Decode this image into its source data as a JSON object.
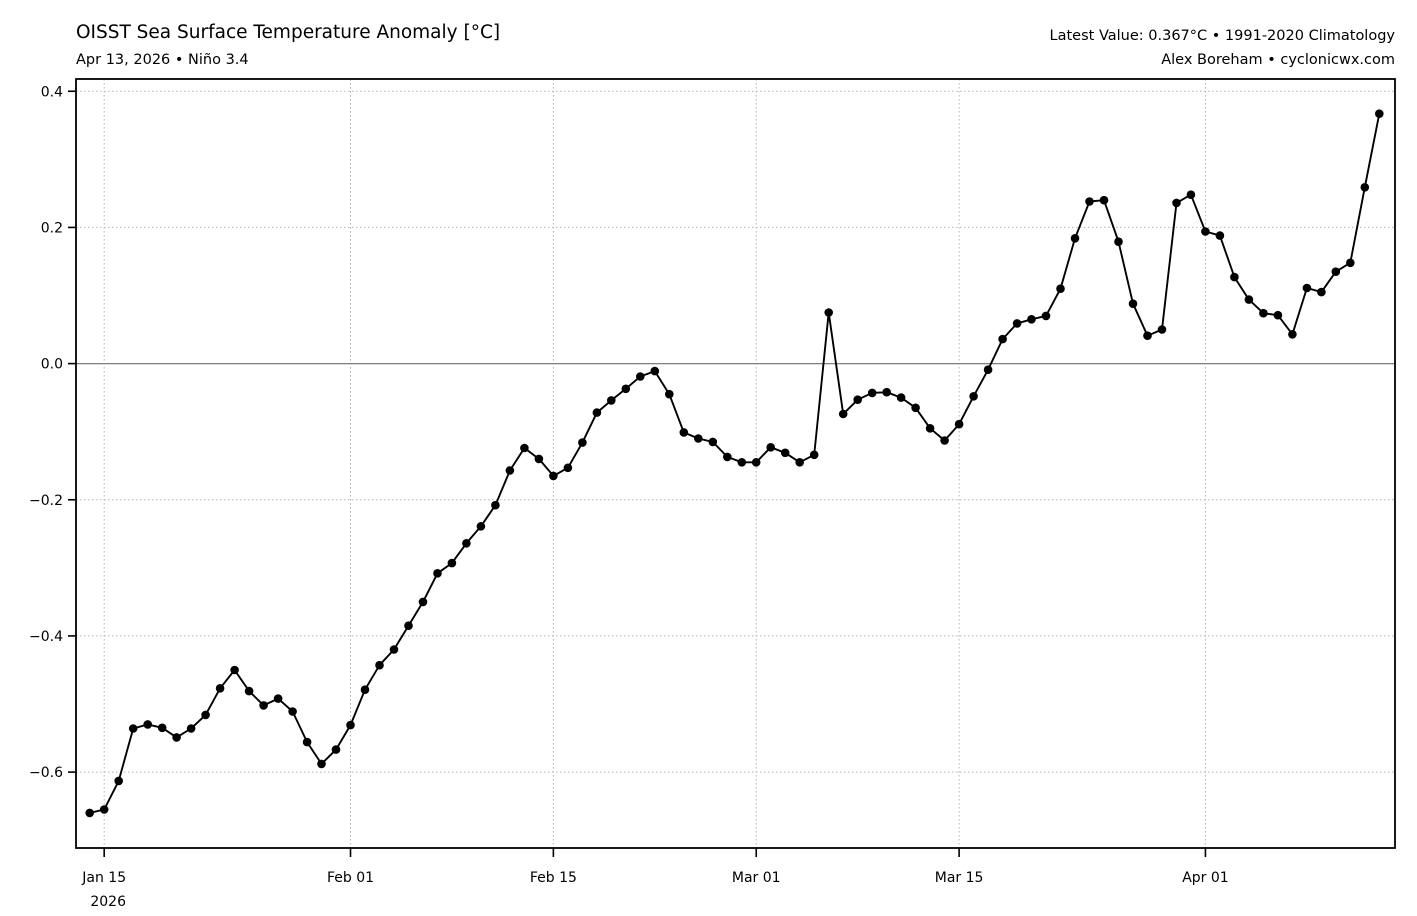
{
  "header": {
    "title": "OISST Sea Surface Temperature Anomaly [°C]",
    "subtitle": "Apr 13, 2026 • Niño 3.4",
    "right_line1": "Latest Value: 0.367°C • 1991-2020 Climatology",
    "right_line2": "Alex Boreham • cyclonicwx.com"
  },
  "colors": {
    "background": "#ffffff",
    "line": "#000000",
    "marker": "#000000",
    "grid": "#b3b3b3",
    "zero_line": "#7f7f7f",
    "spine": "#000000",
    "text": "#000000"
  },
  "chart_data": {
    "type": "line",
    "title": "OISST Sea Surface Temperature Anomaly [°C]",
    "subtitle": "Apr 13, 2026 • Niño 3.4",
    "series_name": "SST anomaly Niño 3.4 (°C)",
    "latest_value": 0.367,
    "xlabel": "",
    "ylabel": "",
    "grid": true,
    "legend": false,
    "zero_line": true,
    "marker": "circle",
    "x": [
      "2026-01-14",
      "2026-01-15",
      "2026-01-16",
      "2026-01-17",
      "2026-01-18",
      "2026-01-19",
      "2026-01-20",
      "2026-01-21",
      "2026-01-22",
      "2026-01-23",
      "2026-01-24",
      "2026-01-25",
      "2026-01-26",
      "2026-01-27",
      "2026-01-28",
      "2026-01-29",
      "2026-01-30",
      "2026-01-31",
      "2026-02-01",
      "2026-02-02",
      "2026-02-03",
      "2026-02-04",
      "2026-02-05",
      "2026-02-06",
      "2026-02-07",
      "2026-02-08",
      "2026-02-09",
      "2026-02-10",
      "2026-02-11",
      "2026-02-12",
      "2026-02-13",
      "2026-02-14",
      "2026-02-15",
      "2026-02-16",
      "2026-02-17",
      "2026-02-18",
      "2026-02-19",
      "2026-02-20",
      "2026-02-21",
      "2026-02-22",
      "2026-02-23",
      "2026-02-24",
      "2026-02-25",
      "2026-02-26",
      "2026-02-27",
      "2026-02-28",
      "2026-03-01",
      "2026-03-02",
      "2026-03-03",
      "2026-03-04",
      "2026-03-05",
      "2026-03-06",
      "2026-03-07",
      "2026-03-08",
      "2026-03-09",
      "2026-03-10",
      "2026-03-11",
      "2026-03-12",
      "2026-03-13",
      "2026-03-14",
      "2026-03-15",
      "2026-03-16",
      "2026-03-17",
      "2026-03-18",
      "2026-03-19",
      "2026-03-20",
      "2026-03-21",
      "2026-03-22",
      "2026-03-23",
      "2026-03-24",
      "2026-03-25",
      "2026-03-26",
      "2026-03-27",
      "2026-03-28",
      "2026-03-29",
      "2026-03-30",
      "2026-03-31",
      "2026-04-01",
      "2026-04-02",
      "2026-04-03",
      "2026-04-04",
      "2026-04-05",
      "2026-04-06",
      "2026-04-07",
      "2026-04-08",
      "2026-04-09",
      "2026-04-10",
      "2026-04-11",
      "2026-04-12",
      "2026-04-13"
    ],
    "values": [
      -0.66,
      -0.655,
      -0.613,
      -0.536,
      -0.53,
      -0.535,
      -0.549,
      -0.536,
      -0.516,
      -0.477,
      -0.45,
      -0.481,
      -0.502,
      -0.492,
      -0.511,
      -0.556,
      -0.588,
      -0.567,
      -0.531,
      -0.479,
      -0.443,
      -0.42,
      -0.385,
      -0.35,
      -0.308,
      -0.293,
      -0.264,
      -0.239,
      -0.208,
      -0.157,
      -0.124,
      -0.14,
      -0.165,
      -0.153,
      -0.116,
      -0.072,
      -0.054,
      -0.037,
      -0.019,
      -0.011,
      -0.045,
      -0.101,
      -0.11,
      -0.115,
      -0.137,
      -0.145,
      -0.145,
      -0.123,
      -0.131,
      -0.145,
      -0.134,
      0.075,
      -0.074,
      -0.053,
      -0.043,
      -0.042,
      -0.05,
      -0.065,
      -0.095,
      -0.113,
      -0.089,
      -0.048,
      -0.009,
      0.036,
      0.059,
      0.065,
      0.07,
      0.11,
      0.184,
      0.238,
      0.24,
      0.179,
      0.088,
      0.041,
      0.05,
      0.236,
      0.248,
      0.194,
      0.188,
      0.127,
      0.094,
      0.074,
      0.071,
      0.043,
      0.111,
      0.105,
      0.135,
      0.148,
      0.259,
      0.367
    ],
    "xticks": [
      {
        "label": "Jan 15",
        "sublabel": "2026",
        "index": 1
      },
      {
        "label": "Feb 01",
        "sublabel": "",
        "index": 18
      },
      {
        "label": "Feb 15",
        "sublabel": "",
        "index": 32
      },
      {
        "label": "Mar 01",
        "sublabel": "",
        "index": 46
      },
      {
        "label": "Mar 15",
        "sublabel": "",
        "index": 60
      },
      {
        "label": "Apr 01",
        "sublabel": "",
        "index": 77
      }
    ],
    "yticks": [
      0.4,
      0.2,
      0.0,
      -0.2,
      -0.4,
      -0.6
    ],
    "ylim": [
      -0.7115,
      0.418
    ],
    "legend_position": "none"
  }
}
